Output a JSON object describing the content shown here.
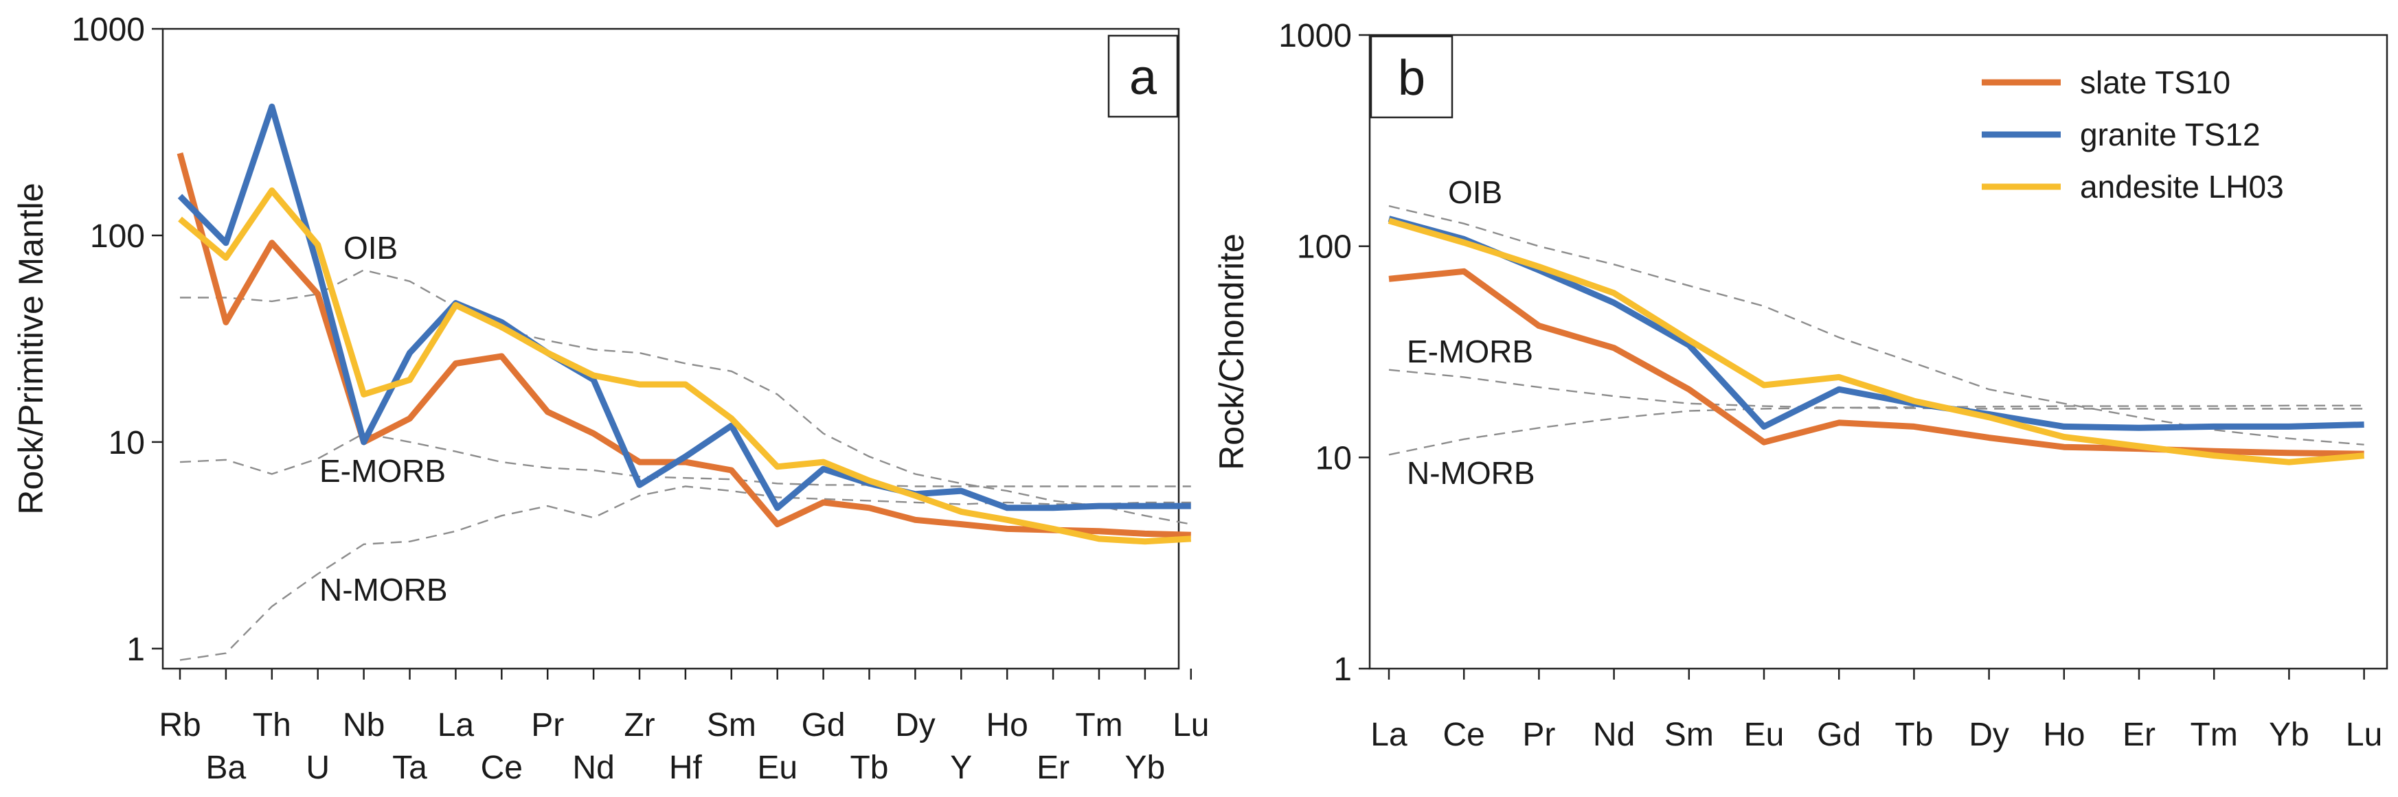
{
  "chart_data": [
    {
      "panel": "a",
      "type": "line",
      "yscale": "log",
      "ylabel": "Rock/Primitive Mantle",
      "ylim": [
        0.8,
        1000
      ],
      "yticks": [
        1,
        10,
        100,
        1000
      ],
      "ytick_labels": [
        "1",
        "10",
        "100",
        "1000"
      ],
      "categories": [
        "Rb",
        "Ba",
        "Th",
        "U",
        "Nb",
        "Ta",
        "La",
        "Ce",
        "Pr",
        "Nd",
        "Zr",
        "Hf",
        "Sm",
        "Eu",
        "Gd",
        "Tb",
        "Dy",
        "Y",
        "Ho",
        "Er",
        "Tm",
        "Yb",
        "Lu"
      ],
      "series": [
        {
          "name": "slate TS10",
          "color": "#E07434",
          "values": [
            250,
            38,
            92,
            52,
            10,
            13,
            24,
            26,
            14,
            11,
            8,
            8,
            7.3,
            4,
            5.1,
            4.8,
            4.2,
            4.0,
            3.8,
            3.75,
            3.7,
            3.6,
            3.55
          ]
        },
        {
          "name": "granite TS12",
          "color": "#3F72B8",
          "values": [
            155,
            92,
            420,
            70,
            10,
            27,
            47,
            38,
            27,
            20,
            6.2,
            8.5,
            12,
            4.8,
            7.4,
            6.3,
            5.6,
            5.8,
            4.8,
            4.8,
            4.9,
            4.9,
            4.9
          ]
        },
        {
          "name": "andesite LH03",
          "color": "#F7BE2E",
          "values": [
            120,
            78,
            165,
            90,
            17,
            20,
            46,
            36,
            27,
            21,
            19,
            19,
            13,
            7.6,
            8,
            6.5,
            5.5,
            4.6,
            4.2,
            3.8,
            3.4,
            3.3,
            3.4
          ]
        }
      ],
      "references": [
        {
          "name": "OIB",
          "values": [
            50,
            50,
            48,
            52,
            68,
            60,
            45,
            35,
            31,
            28,
            27,
            24,
            22,
            17,
            11,
            8.5,
            7,
            6.3,
            5.8,
            5.2,
            4.9,
            4.4,
            4.0
          ]
        },
        {
          "name": "E-MORB",
          "values": [
            8,
            8.2,
            7,
            8.3,
            11,
            10,
            9,
            8,
            7.5,
            7.3,
            6.8,
            6.7,
            6.6,
            6.3,
            6.2,
            6.2,
            6.1,
            6.1,
            6.1,
            6.1,
            6.1,
            6.1,
            6.1
          ]
        },
        {
          "name": "N-MORB",
          "values": [
            0.88,
            0.95,
            1.6,
            2.3,
            3.2,
            3.3,
            3.7,
            4.4,
            4.9,
            4.3,
            5.5,
            6.1,
            5.8,
            5.4,
            5.3,
            5.2,
            5.1,
            5.0,
            5.1,
            5.0,
            5.0,
            5.1,
            5.1
          ]
        }
      ],
      "reference_labels": [
        "OIB",
        "E-MORB",
        "N-MORB"
      ],
      "panel_label": "a"
    },
    {
      "panel": "b",
      "type": "line",
      "yscale": "log",
      "ylabel": "Rock/Chondrite",
      "ylim": [
        1,
        1000
      ],
      "yticks": [
        1,
        10,
        100,
        1000
      ],
      "ytick_labels": [
        "1",
        "10",
        "100",
        "1000"
      ],
      "categories": [
        "La",
        "Ce",
        "Pr",
        "Nd",
        "Sm",
        "Eu",
        "Gd",
        "Tb",
        "Dy",
        "Ho",
        "Er",
        "Tm",
        "Yb",
        "Lu"
      ],
      "series": [
        {
          "name": "slate TS10",
          "color": "#E07434",
          "values": [
            70,
            76,
            42,
            33,
            21,
            11.8,
            14.6,
            14,
            12.4,
            11.2,
            11,
            10.7,
            10.5,
            10.4
          ]
        },
        {
          "name": "granite TS12",
          "color": "#3F72B8",
          "values": [
            135,
            108,
            77,
            54,
            34,
            14,
            21,
            18,
            16,
            14,
            13.8,
            14,
            14,
            14.3
          ]
        },
        {
          "name": "andesite LH03",
          "color": "#F7BE2E",
          "values": [
            132,
            104,
            80,
            60,
            36,
            22,
            24,
            18.5,
            15.5,
            12.5,
            11.3,
            10.2,
            9.5,
            10.2
          ]
        }
      ],
      "references": [
        {
          "name": "OIB",
          "values": [
            155,
            128,
            100,
            82,
            65,
            52,
            37,
            28,
            21,
            18,
            15.5,
            13.5,
            12.3,
            11.5
          ]
        },
        {
          "name": "E-MORB",
          "values": [
            26,
            24,
            21.5,
            19.5,
            18,
            17.5,
            17.2,
            17.1,
            17.0,
            17.0,
            17.0,
            17.0,
            17.0,
            17.0
          ]
        },
        {
          "name": "N-MORB",
          "values": [
            10.3,
            12.2,
            13.8,
            15.3,
            16.6,
            17.0,
            17.2,
            17.3,
            17.4,
            17.5,
            17.5,
            17.5,
            17.6,
            17.6
          ]
        }
      ],
      "reference_labels": [
        "OIB",
        "E-MORB",
        "N-MORB"
      ],
      "panel_label": "b",
      "legend": {
        "position": "top-right",
        "entries": [
          "slate TS10",
          "granite TS12",
          "andesite LH03"
        ]
      }
    }
  ]
}
